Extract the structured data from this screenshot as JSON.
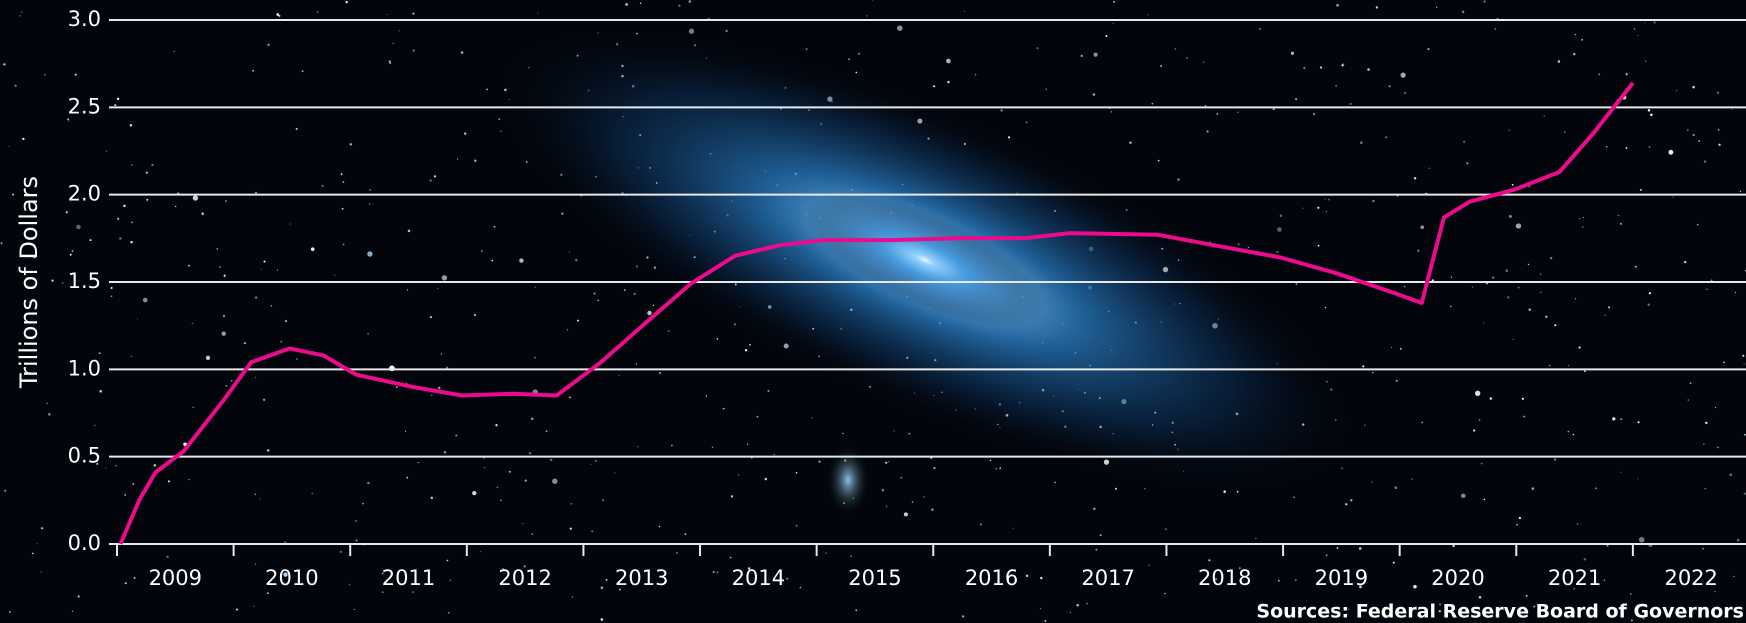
{
  "chart_data": {
    "type": "line",
    "y_label": "Trillions of Dollars",
    "source": "Sources: Federal Reserve Board of Governors",
    "x": [
      2009.03,
      2009.19,
      2009.33,
      2009.57,
      2009.91,
      2010.15,
      2010.48,
      2010.77,
      2011.05,
      2011.53,
      2011.96,
      2012.39,
      2012.77,
      2013.15,
      2013.54,
      2013.92,
      2014.3,
      2014.68,
      2015.06,
      2015.64,
      2016.21,
      2016.78,
      2017.17,
      2017.93,
      2018.41,
      2018.98,
      2019.46,
      2019.94,
      2020.19,
      2020.27,
      2020.38,
      2020.6,
      2020.99,
      2021.37,
      2021.66,
      2022.0
    ],
    "series": [
      {
        "color": "#ec0b8c",
        "values": [
          0,
          0.25,
          0.41,
          0.53,
          0.82,
          1.04,
          1.12,
          1.08,
          0.97,
          0.9,
          0.85,
          0.86,
          0.85,
          1.04,
          1.27,
          1.49,
          1.65,
          1.71,
          1.74,
          1.74,
          1.75,
          1.75,
          1.78,
          1.77,
          1.71,
          1.64,
          1.55,
          1.44,
          1.38,
          1.59,
          1.87,
          1.96,
          2.03,
          2.13,
          2.35,
          2.64
        ]
      }
    ],
    "xlim": [
      2009,
      2022.97
    ],
    "xtick_marks": [
      2009,
      2010,
      2011,
      2012,
      2013,
      2014,
      2015,
      2016,
      2017,
      2018,
      2019,
      2020,
      2021,
      2022
    ],
    "xticks": [
      {
        "value": 2009.5,
        "label": "2009"
      },
      {
        "value": 2010.5,
        "label": "2010"
      },
      {
        "value": 2011.5,
        "label": "2011"
      },
      {
        "value": 2012.5,
        "label": "2012"
      },
      {
        "value": 2013.5,
        "label": "2013"
      },
      {
        "value": 2014.5,
        "label": "2014"
      },
      {
        "value": 2015.5,
        "label": "2015"
      },
      {
        "value": 2016.5,
        "label": "2016"
      },
      {
        "value": 2017.5,
        "label": "2017"
      },
      {
        "value": 2018.5,
        "label": "2018"
      },
      {
        "value": 2019.5,
        "label": "2019"
      },
      {
        "value": 2020.5,
        "label": "2020"
      },
      {
        "value": 2021.5,
        "label": "2021"
      },
      {
        "value": 2022.5,
        "label": "2022"
      }
    ],
    "ylim": [
      0,
      3
    ],
    "yticks": [
      {
        "value": 0,
        "label": "0.0"
      },
      0.5,
      {
        "value": 1,
        "label": "1.0"
      },
      1.5,
      {
        "value": 2,
        "label": "2.0"
      },
      2.5,
      {
        "value": 3,
        "label": "3.0"
      }
    ],
    "grid": true
  }
}
